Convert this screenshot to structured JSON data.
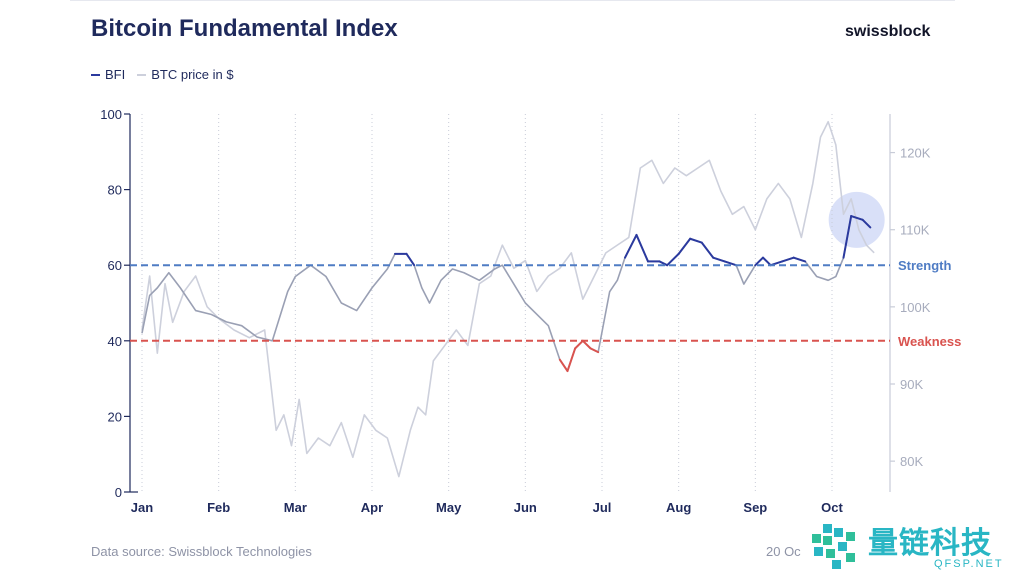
{
  "header": {
    "title": "Bitcoin Fundamental Index",
    "brand": "swissblock"
  },
  "legend": {
    "bfi_label": "BFI",
    "btc_label": "BTC price in $"
  },
  "footer": {
    "source": "Data source: Swissblock Technologies",
    "date": "20 Oc"
  },
  "watermark": {
    "text": "量链科技",
    "sub": "QFSP.NET"
  },
  "colors": {
    "bfi": "#2b3a9e",
    "bfi_weak": "#d9534f",
    "btc": "#cdd0dc",
    "strength": "#4f7cc4",
    "weakness": "#d9534f",
    "highlight": "#b9c6f2"
  },
  "chart_data": {
    "type": "line",
    "title": "Bitcoin Fundamental Index",
    "x_domain": [
      0,
      9.6
    ],
    "xtick_labels": [
      "Jan",
      "Feb",
      "Mar",
      "Apr",
      "May",
      "Jun",
      "Jul",
      "Aug",
      "Sep",
      "Oct"
    ],
    "y_left": {
      "range": [
        0,
        100
      ],
      "ticks": [
        0,
        20,
        40,
        60,
        80,
        100
      ]
    },
    "y_right": {
      "range": [
        76000,
        125000
      ],
      "ticks": [
        80000,
        90000,
        100000,
        110000,
        120000
      ],
      "tick_labels": [
        "80K",
        "90K",
        "100K",
        "110K",
        "120K"
      ]
    },
    "thresholds": [
      {
        "name": "Strength",
        "value": 60
      },
      {
        "name": "Weakness",
        "value": 40
      }
    ],
    "series": [
      {
        "name": "BFI",
        "axis": "left",
        "x": [
          0.0,
          0.1,
          0.2,
          0.35,
          0.5,
          0.7,
          0.9,
          1.1,
          1.3,
          1.5,
          1.7,
          1.9,
          2.0,
          2.2,
          2.4,
          2.6,
          2.8,
          3.0,
          3.2,
          3.3,
          3.45,
          3.55,
          3.65,
          3.75,
          3.9,
          4.05,
          4.2,
          4.4,
          4.6,
          4.7,
          4.85,
          5.0,
          5.15,
          5.3,
          5.45,
          5.55,
          5.65,
          5.75,
          5.85,
          5.95,
          6.1,
          6.2,
          6.3,
          6.45,
          6.6,
          6.75,
          6.85,
          7.0,
          7.15,
          7.3,
          7.45,
          7.6,
          7.75,
          7.85,
          8.0,
          8.1,
          8.2,
          8.35,
          8.5,
          8.65,
          8.8,
          8.95,
          9.05,
          9.15,
          9.25,
          9.4,
          9.5
        ],
        "y": [
          42,
          52,
          54,
          58,
          54,
          48,
          47,
          45,
          44,
          41,
          40,
          53,
          57,
          60,
          57,
          50,
          48,
          54,
          59,
          63,
          63,
          60,
          54,
          50,
          56,
          59,
          58,
          56,
          59,
          60,
          55,
          50,
          47,
          44,
          35,
          32,
          38,
          40,
          38,
          37,
          53,
          56,
          62,
          68,
          61,
          61,
          60,
          63,
          67,
          66,
          62,
          61,
          60,
          55,
          60,
          62,
          60,
          61,
          62,
          61,
          57,
          56,
          57,
          62,
          73,
          72,
          70
        ]
      },
      {
        "name": "BTC price in $",
        "axis": "right",
        "x": [
          0.0,
          0.1,
          0.2,
          0.3,
          0.4,
          0.55,
          0.7,
          0.85,
          1.0,
          1.2,
          1.4,
          1.6,
          1.75,
          1.85,
          1.95,
          2.05,
          2.15,
          2.3,
          2.45,
          2.6,
          2.75,
          2.9,
          3.05,
          3.2,
          3.35,
          3.5,
          3.6,
          3.7,
          3.8,
          3.95,
          4.1,
          4.25,
          4.4,
          4.55,
          4.7,
          4.85,
          5.0,
          5.15,
          5.3,
          5.45,
          5.6,
          5.75,
          5.9,
          6.05,
          6.2,
          6.35,
          6.5,
          6.65,
          6.8,
          6.95,
          7.1,
          7.25,
          7.4,
          7.55,
          7.7,
          7.85,
          8.0,
          8.15,
          8.3,
          8.45,
          8.6,
          8.75,
          8.85,
          8.95,
          9.05,
          9.15,
          9.25,
          9.35,
          9.45,
          9.55
        ],
        "y": [
          97000,
          104000,
          94000,
          103000,
          98000,
          102000,
          104000,
          100000,
          98500,
          97000,
          96000,
          97000,
          84000,
          86000,
          82000,
          88000,
          81000,
          83000,
          82000,
          85000,
          80500,
          86000,
          84000,
          83000,
          78000,
          84000,
          87000,
          86000,
          93000,
          95000,
          97000,
          95000,
          103000,
          104000,
          108000,
          105000,
          106000,
          102000,
          104000,
          105000,
          107000,
          101000,
          104000,
          107000,
          108000,
          109000,
          118000,
          119000,
          116000,
          118000,
          117000,
          118000,
          119000,
          115000,
          112000,
          113000,
          110000,
          114000,
          116000,
          114000,
          109000,
          116000,
          122000,
          124000,
          121000,
          112000,
          114000,
          110000,
          108000,
          107000
        ]
      }
    ]
  }
}
